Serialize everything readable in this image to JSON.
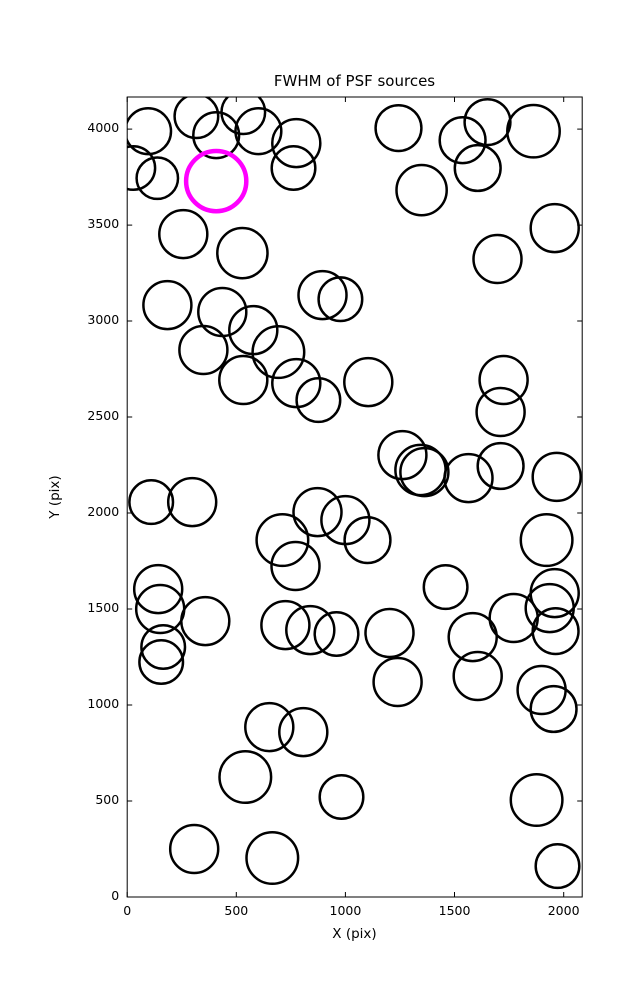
{
  "chart_data": {
    "type": "scatter",
    "title": "FWHM of PSF sources",
    "xlabel": "X (pix)",
    "ylabel": "Y (pix)",
    "xlim": [
      0,
      2085
    ],
    "ylim": [
      0,
      4167
    ],
    "xticks": [
      0,
      500,
      1000,
      1500,
      2000
    ],
    "yticks": [
      0,
      500,
      1000,
      1500,
      2000,
      2500,
      3000,
      3500,
      4000
    ],
    "grid": false,
    "legend": "none",
    "marker": "open-circle",
    "circle_color": "#000000",
    "highlight_color": "#ff00ff",
    "highlight": {
      "x": 408,
      "y": 3729,
      "r": 138
    },
    "points": [
      [
        96,
        3989,
        105
      ],
      [
        317,
        4067,
        100
      ],
      [
        408,
        3968,
        105
      ],
      [
        532,
        4088,
        100
      ],
      [
        601,
        3989,
        105
      ],
      [
        28,
        3797,
        100
      ],
      [
        138,
        3744,
        95
      ],
      [
        775,
        3927,
        110
      ],
      [
        762,
        3797,
        100
      ],
      [
        1243,
        4005,
        105
      ],
      [
        1537,
        3942,
        105
      ],
      [
        1651,
        4036,
        105
      ],
      [
        1862,
        3989,
        120
      ],
      [
        1349,
        3682,
        115
      ],
      [
        1606,
        3797,
        105
      ],
      [
        1959,
        3484,
        110
      ],
      [
        257,
        3453,
        110
      ],
      [
        528,
        3354,
        115
      ],
      [
        1697,
        3323,
        110
      ],
      [
        895,
        3135,
        110
      ],
      [
        977,
        3114,
        100
      ],
      [
        184,
        3083,
        110
      ],
      [
        436,
        3047,
        110
      ],
      [
        578,
        2953,
        110
      ],
      [
        349,
        2849,
        110
      ],
      [
        693,
        2838,
        118
      ],
      [
        532,
        2693,
        110
      ],
      [
        775,
        2677,
        110
      ],
      [
        876,
        2588,
        100
      ],
      [
        1105,
        2682,
        110
      ],
      [
        1725,
        2693,
        110
      ],
      [
        1711,
        2526,
        110
      ],
      [
        1261,
        2302,
        110
      ],
      [
        1344,
        2224,
        115
      ],
      [
        1362,
        2213,
        110
      ],
      [
        1564,
        2182,
        110
      ],
      [
        1711,
        2245,
        105
      ],
      [
        1968,
        2188,
        110
      ],
      [
        110,
        2057,
        100
      ],
      [
        298,
        2057,
        110
      ],
      [
        872,
        2005,
        110
      ],
      [
        1000,
        1963,
        110
      ],
      [
        711,
        1859,
        118
      ],
      [
        1101,
        1859,
        105
      ],
      [
        1922,
        1859,
        118
      ],
      [
        771,
        1724,
        110
      ],
      [
        1459,
        1614,
        100
      ],
      [
        142,
        1604,
        110
      ],
      [
        151,
        1500,
        110
      ],
      [
        1959,
        1583,
        110
      ],
      [
        358,
        1437,
        110
      ],
      [
        725,
        1416,
        110
      ],
      [
        839,
        1390,
        110
      ],
      [
        959,
        1370,
        100
      ],
      [
        1202,
        1375,
        110
      ],
      [
        165,
        1302,
        100
      ],
      [
        156,
        1224,
        100
      ],
      [
        1583,
        1354,
        110
      ],
      [
        1771,
        1453,
        110
      ],
      [
        1936,
        1505,
        110
      ],
      [
        1963,
        1385,
        105
      ],
      [
        1239,
        1120,
        110
      ],
      [
        1606,
        1151,
        110
      ],
      [
        1899,
        1078,
        110
      ],
      [
        1954,
        979,
        105
      ],
      [
        651,
        885,
        110
      ],
      [
        807,
        859,
        110
      ],
      [
        541,
        625,
        118
      ],
      [
        982,
        521,
        100
      ],
      [
        1876,
        505,
        118
      ],
      [
        307,
        250,
        110
      ],
      [
        665,
        203,
        118
      ],
      [
        1972,
        161,
        100
      ]
    ]
  }
}
